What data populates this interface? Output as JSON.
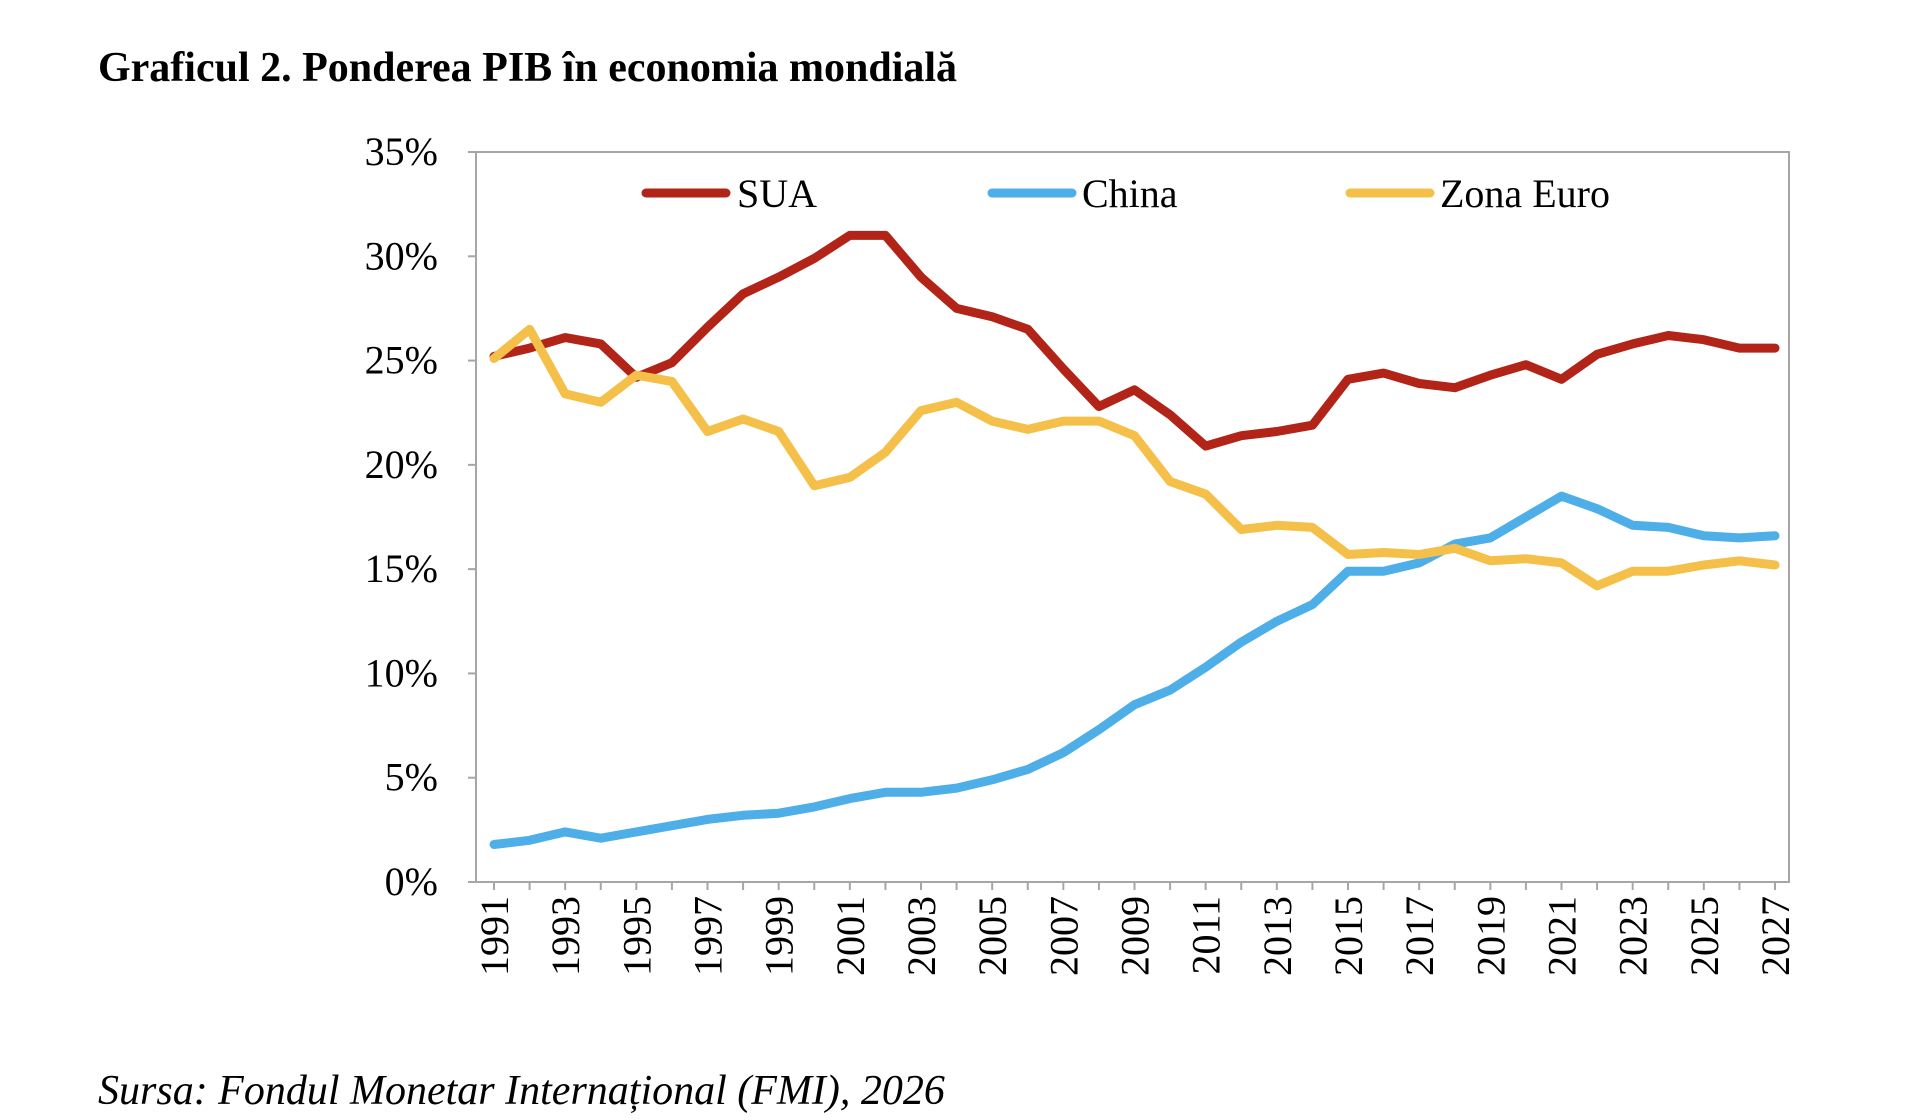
{
  "title": "Graficul 2. Ponderea PIB în economia mondială",
  "source": "Sursa: Fondul Monetar Internațional (FMI), 2026",
  "chart_data": {
    "type": "line",
    "x": [
      1991,
      1992,
      1993,
      1994,
      1995,
      1996,
      1997,
      1998,
      1999,
      2000,
      2001,
      2002,
      2003,
      2004,
      2005,
      2006,
      2007,
      2008,
      2009,
      2010,
      2011,
      2012,
      2013,
      2014,
      2015,
      2016,
      2017,
      2018,
      2019,
      2020,
      2021,
      2022,
      2023,
      2024,
      2025,
      2026,
      2027
    ],
    "x_tick_labels": [
      "1991",
      "1993",
      "1995",
      "1997",
      "1999",
      "2001",
      "2003",
      "2005",
      "2007",
      "2009",
      "2011",
      "2013",
      "2015",
      "2017",
      "2019",
      "2021",
      "2023",
      "2025",
      "2027"
    ],
    "ylim": [
      0,
      35
    ],
    "y_ticks": [
      0,
      5,
      10,
      15,
      20,
      25,
      30,
      35
    ],
    "y_tick_labels": [
      "0%",
      "5%",
      "10%",
      "15%",
      "20%",
      "25%",
      "30%",
      "35%"
    ],
    "y_unit": "%",
    "grid": false,
    "legend_position": "top",
    "series": [
      {
        "name": "SUA",
        "color": "#B22418",
        "values": [
          25.2,
          25.6,
          26.1,
          25.8,
          24.2,
          24.9,
          26.6,
          28.2,
          29.0,
          29.9,
          31.0,
          31.0,
          29.0,
          27.5,
          27.1,
          26.5,
          24.6,
          22.8,
          23.6,
          22.4,
          20.9,
          21.4,
          21.6,
          21.9,
          24.1,
          24.4,
          23.9,
          23.7,
          24.3,
          24.8,
          24.1,
          25.3,
          25.8,
          26.2,
          26.0,
          25.6,
          25.6
        ]
      },
      {
        "name": "China",
        "color": "#4DAEE8",
        "values": [
          1.8,
          2.0,
          2.4,
          2.1,
          2.4,
          2.7,
          3.0,
          3.2,
          3.3,
          3.6,
          4.0,
          4.3,
          4.3,
          4.5,
          4.9,
          5.4,
          6.2,
          7.3,
          8.5,
          9.2,
          10.3,
          11.5,
          12.5,
          13.3,
          14.9,
          14.9,
          15.3,
          16.2,
          16.5,
          17.5,
          18.5,
          17.9,
          17.1,
          17.0,
          16.6,
          16.5,
          16.6
        ]
      },
      {
        "name": "Zona Euro",
        "color": "#F4C04A",
        "values": [
          25.1,
          26.5,
          23.4,
          23.0,
          24.3,
          24.0,
          21.6,
          22.2,
          21.6,
          19.0,
          19.4,
          20.6,
          22.6,
          23.0,
          22.1,
          21.7,
          22.1,
          22.1,
          21.4,
          19.2,
          18.6,
          16.9,
          17.1,
          17.0,
          15.7,
          15.8,
          15.7,
          16.0,
          15.4,
          15.5,
          15.3,
          14.2,
          14.9,
          14.9,
          15.2,
          15.4,
          15.2
        ]
      }
    ]
  }
}
